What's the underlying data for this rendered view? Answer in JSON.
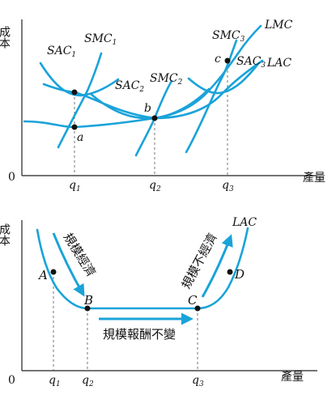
{
  "top": {
    "y_axis_label": "成本",
    "origin": "0",
    "x_axis_label": "產量",
    "curves": {
      "sac1": "SAC",
      "sac1_sub": "1",
      "smc1": "SMC",
      "smc1_sub": "1",
      "sac2": "SAC",
      "sac2_sub": "2",
      "smc2": "SMC",
      "smc2_sub": "2",
      "smc3": "SMC",
      "smc3_sub": "3",
      "sac3": "SAC",
      "sac3_sub": "3",
      "lmc": "LMC",
      "lac": "LAC"
    },
    "points": {
      "a": "a",
      "b": "b",
      "c": "c"
    },
    "ticks": {
      "q1": "q",
      "q1_sub": "1",
      "q2": "q",
      "q2_sub": "2",
      "q3": "q",
      "q3_sub": "3"
    }
  },
  "bottom": {
    "y_axis_label": "成本",
    "origin": "0",
    "x_axis_label": "產量",
    "lac_label": "LAC",
    "points": {
      "A": "A",
      "B": "B",
      "C": "C",
      "D": "D"
    },
    "ticks": {
      "q1": "q",
      "q1_sub": "1",
      "q2": "q",
      "q2_sub": "2",
      "q3": "q",
      "q3_sub": "3"
    },
    "regions": {
      "increasing": "規模經濟",
      "constant": "規模報酬不變",
      "decreasing": "規模不經濟"
    }
  },
  "colors": {
    "curve": "#1aa3d9",
    "axis": "#222222"
  }
}
